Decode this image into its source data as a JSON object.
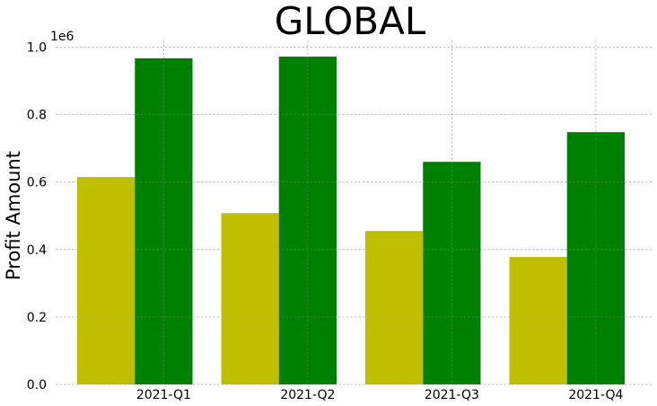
{
  "chart_data": {
    "type": "bar",
    "title": "GLOBAL",
    "ylabel": "Profit Amount",
    "xlabel": "",
    "y_offset_label": "1e6",
    "categories": [
      "2021-Q1",
      "2021-Q2",
      "2021-Q3",
      "2021-Q4"
    ],
    "ylim": [
      0,
      1.02
    ],
    "yticks": [
      0.0,
      0.2,
      0.4,
      0.6,
      0.8,
      1.0
    ],
    "ytick_labels": [
      "0.0",
      "0.2",
      "0.4",
      "0.6",
      "0.8",
      "1.0"
    ],
    "grid": true,
    "series": [
      {
        "color": "#bfbf00",
        "values": [
          0.615,
          0.508,
          0.455,
          0.378
        ]
      },
      {
        "color": "#008000",
        "values": [
          0.967,
          0.972,
          0.66,
          0.748
        ]
      }
    ]
  }
}
